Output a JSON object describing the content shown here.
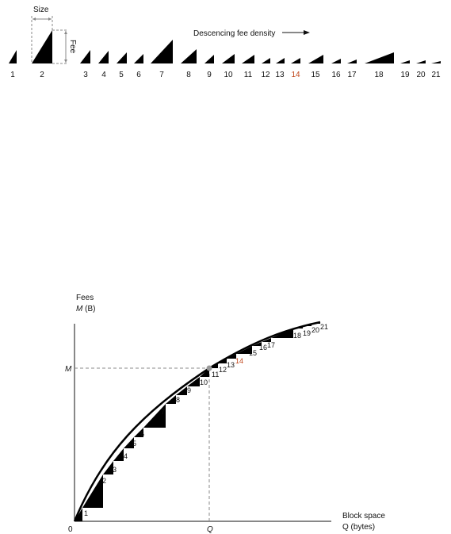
{
  "top": {
    "size_label": "Size",
    "fee_label": "Fee",
    "direction_label": "Descencing fee density",
    "tx_labels": [
      "1",
      "2",
      "3",
      "4",
      "5",
      "6",
      "7",
      "8",
      "9",
      "10",
      "11",
      "12",
      "13",
      "14",
      "15",
      "16",
      "17",
      "18",
      "19",
      "20",
      "21"
    ]
  },
  "bottom": {
    "y_title": "Fees",
    "y_units_var": "M",
    "y_units_rest": " (B)",
    "y_mark": "M",
    "x_title": "Block space",
    "x_units": "Q (bytes)",
    "x_mark": "Q",
    "origin": "0",
    "step_labels": [
      "1",
      "2",
      "3",
      "4",
      "5",
      "6",
      "7",
      "8",
      "9",
      "10",
      "11",
      "12",
      "13",
      "14",
      "15",
      "16",
      "17",
      "18",
      "19",
      "20",
      "21"
    ]
  },
  "colors": {
    "ink": "#111111",
    "guide": "#888888",
    "highlight": "#c0461a"
  }
}
